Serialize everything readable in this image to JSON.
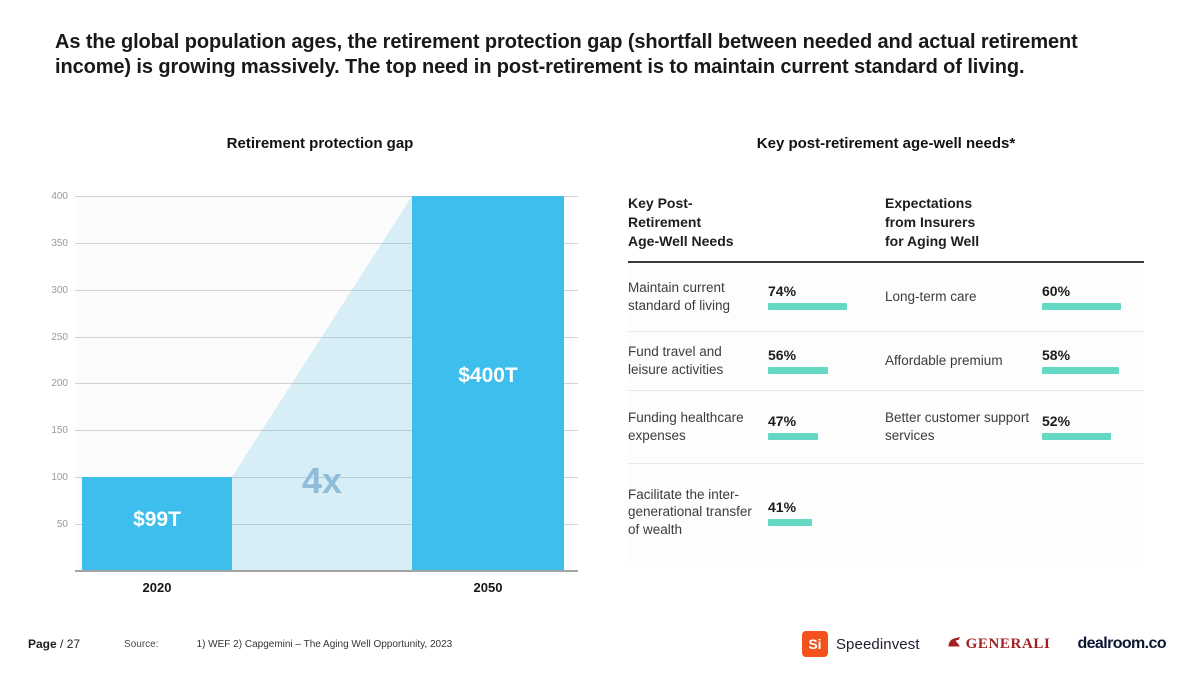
{
  "headline": "As the global population ages, the retirement protection gap (shortfall between needed and actual retirement income) is growing massively. The top need in post-retirement is to maintain current standard of living.",
  "chart_data": [
    {
      "type": "bar",
      "title": "Retirement protection gap",
      "categories": [
        "2020",
        "2050"
      ],
      "values": [
        99,
        400
      ],
      "bar_labels": [
        "$99T",
        "$400T"
      ],
      "annotation": "4x",
      "ylim": [
        0,
        400
      ],
      "yticks": [
        50,
        100,
        150,
        200,
        250,
        300,
        350,
        400
      ],
      "grid": true,
      "legend": "none",
      "bar_color": "#3EBEEC",
      "connector": "light-blue trapezoid joining top of 2020 bar to top of 2050 bar"
    },
    {
      "type": "table",
      "title": "Key post-retirement age-well needs*",
      "col_headers": {
        "left": [
          "Key Post-",
          "Retirement",
          "Age-Well Needs"
        ],
        "right": [
          "Expectations",
          "from Insurers",
          "for Aging Well"
        ]
      },
      "bar_color": "#63D9C3",
      "rows": [
        {
          "left_label": "Maintain current standard of living",
          "left_pct": "74%",
          "left_value": 74,
          "right_label": "Long-term care",
          "right_pct": "60%",
          "right_value": 60
        },
        {
          "left_label": "Fund travel and leisure activities",
          "left_pct": "56%",
          "left_value": 56,
          "right_label": "Affordable premium",
          "right_pct": "58%",
          "right_value": 58
        },
        {
          "left_label": "Funding healthcare expenses",
          "left_pct": "47%",
          "left_value": 47,
          "right_label": "Better customer support services",
          "right_pct": "52%",
          "right_value": 52
        },
        {
          "left_label": "Facilitate the inter- generational transfer of wealth",
          "left_pct": "41%",
          "left_value": 41,
          "right_label": "",
          "right_pct": "",
          "right_value": null
        }
      ]
    }
  ],
  "footer": {
    "page_label": "Page",
    "page_number": "/ 27",
    "source_label": "Source:",
    "source_text": "1) WEF  2) Capgemini – The Aging Well Opportunity, 2023",
    "logos": {
      "speedinvest_mark": "Si",
      "speedinvest": "Speedinvest",
      "generali": "GENERALI",
      "dealroom": "dealroom.co"
    }
  },
  "colors": {
    "bar_blue": "#3EBEEC",
    "trapezoid_blue": "#DCEFF9",
    "annotation_blue": "#8FBCD9",
    "teal_bar": "#63D9C3",
    "speedinvest_orange": "#F3521D",
    "generali_red": "#A32125",
    "dealroom_navy": "#0C1733"
  }
}
